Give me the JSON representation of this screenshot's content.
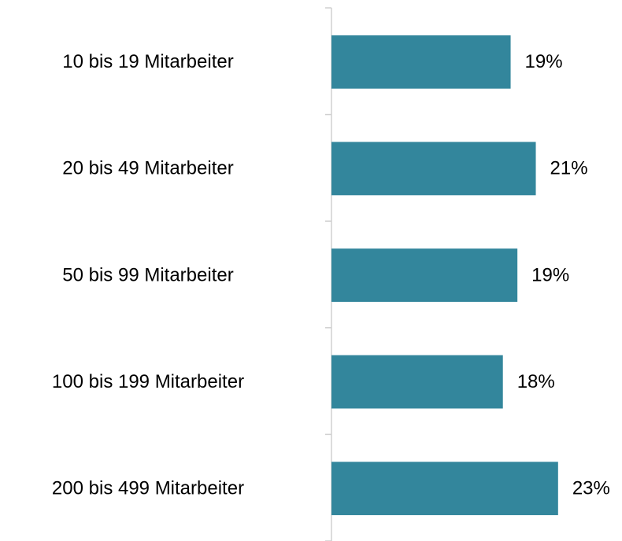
{
  "chart_data": {
    "type": "barh",
    "categories": [
      "10 bis 19 Mitarbeiter",
      "20 bis 49 Mitarbeiter",
      "50 bis 99 Mitarbeiter",
      "100 bis 199 Mitarbeiter",
      "200 bis 499 Mitarbeiter"
    ],
    "values": [
      18.5,
      21.1,
      19.2,
      17.7,
      23.4
    ],
    "value_labels": [
      "19%",
      "21%",
      "19%",
      "18%",
      "23%"
    ],
    "color": "#33869c",
    "xlim": [
      0,
      30
    ]
  }
}
